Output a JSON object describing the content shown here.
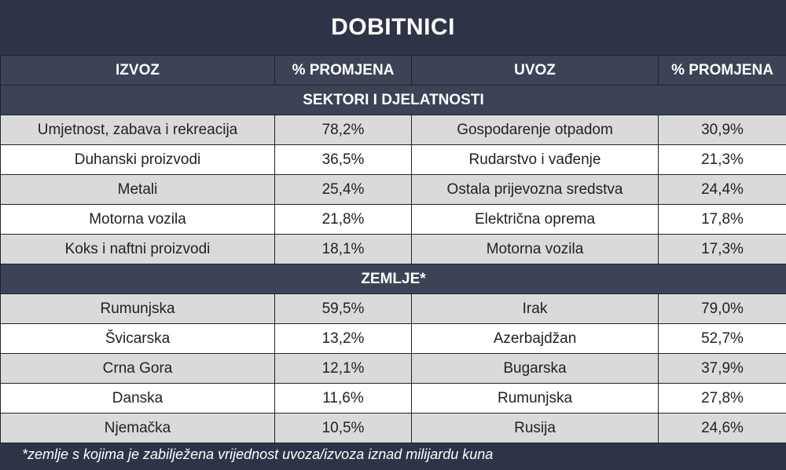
{
  "title": "DOBITNICI",
  "headers": {
    "export": "IZVOZ",
    "export_change": "% PROMJENA",
    "import": "UVOZ",
    "import_change": "% PROMJENA"
  },
  "sections": [
    {
      "label": "SEKTORI I DJELATNOSTI",
      "rows": [
        {
          "export": "Umjetnost, zabava i rekreacija",
          "export_change": "78,2%",
          "import": "Gospodarenje otpadom",
          "import_change": "30,9%"
        },
        {
          "export": "Duhanski proizvodi",
          "export_change": "36,5%",
          "import": "Rudarstvo i vađenje",
          "import_change": "21,3%"
        },
        {
          "export": "Metali",
          "export_change": "25,4%",
          "import": "Ostala prijevozna sredstva",
          "import_change": "24,4%"
        },
        {
          "export": "Motorna vozila",
          "export_change": "21,8%",
          "import": "Električna oprema",
          "import_change": "17,8%"
        },
        {
          "export": "Koks i naftni proizvodi",
          "export_change": "18,1%",
          "import": "Motorna vozila",
          "import_change": "17,3%"
        }
      ]
    },
    {
      "label": "ZEMLJE*",
      "rows": [
        {
          "export": "Rumunjska",
          "export_change": "59,5%",
          "import": "Irak",
          "import_change": "79,0%"
        },
        {
          "export": "Švicarska",
          "export_change": "13,2%",
          "import": "Azerbajdžan",
          "import_change": "52,7%"
        },
        {
          "export": "Crna Gora",
          "export_change": "12,1%",
          "import": "Bugarska",
          "import_change": "37,9%"
        },
        {
          "export": "Danska",
          "export_change": "11,6%",
          "import": "Rumunjska",
          "import_change": "27,8%"
        },
        {
          "export": "Njemačka",
          "export_change": "10,5%",
          "import": "Rusija",
          "import_change": "24,6%"
        }
      ]
    }
  ],
  "footnote": "*zemlje s kojima je zabilježena vrijednost uvoza/izvoza iznad milijardu kuna"
}
